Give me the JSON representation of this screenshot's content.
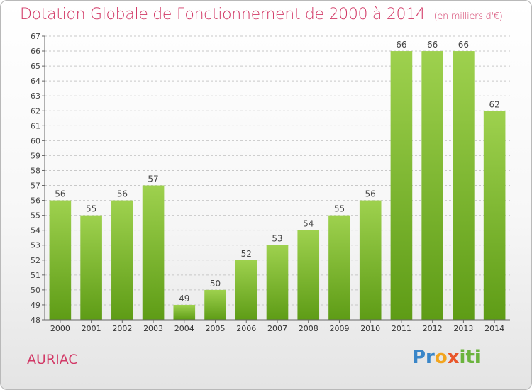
{
  "header": {
    "title": "Dotation Globale de Fonctionnement de 2000 à 2014",
    "subtitle": "(en milliers d'€)"
  },
  "footer": {
    "commune": "AURIAC",
    "brand": "Proxiti"
  },
  "colors": {
    "title": "#d23a67",
    "bar_top": "#9ed14e",
    "bar_bottom": "#5e9c16",
    "grid": "#c8c8c8"
  },
  "chart_data": {
    "type": "bar",
    "title": "Dotation Globale de Fonctionnement de 2000 à 2014",
    "subtitle": "(en milliers d'€)",
    "xlabel": "",
    "ylabel": "",
    "categories": [
      "2000",
      "2001",
      "2002",
      "2003",
      "2004",
      "2005",
      "2006",
      "2007",
      "2008",
      "2009",
      "2010",
      "2011",
      "2012",
      "2013",
      "2014"
    ],
    "values": [
      56,
      55,
      56,
      57,
      49,
      50,
      52,
      53,
      54,
      55,
      56,
      66,
      66,
      66,
      62
    ],
    "ylim": [
      48,
      67
    ],
    "yticks": [
      48,
      49,
      50,
      51,
      52,
      53,
      54,
      55,
      56,
      57,
      58,
      59,
      60,
      61,
      62,
      63,
      64,
      65,
      66,
      67
    ],
    "grid": true,
    "data_labels": true,
    "legend": "none"
  }
}
